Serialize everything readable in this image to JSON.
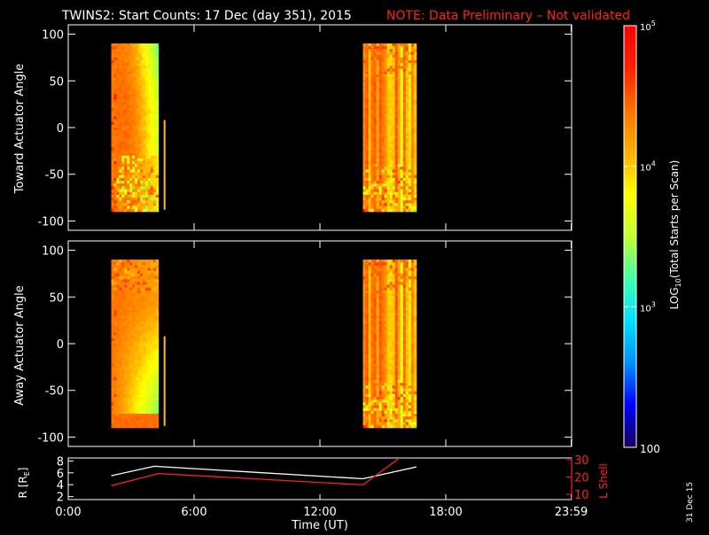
{
  "header": {
    "title": "TWINS2: Start Counts: 17 Dec (day 351), 2015",
    "note": "NOTE: Data Preliminary – Not validated",
    "note_color": "#ff2020"
  },
  "footer": {
    "date_stamp": "31 Dec 15"
  },
  "colors": {
    "background": "#000000",
    "axes": "#ffffff",
    "lshell": "#ff2020"
  },
  "chart_data": [
    {
      "type": "heatmap",
      "title": "",
      "ylabel": "Toward Actuator Angle",
      "xlim": [
        0,
        24
      ],
      "ylim": [
        -110,
        110
      ],
      "yticks": [
        {
          "value": 100,
          "label": "100"
        },
        {
          "value": 50,
          "label": "50"
        },
        {
          "value": 0,
          "label": "0"
        },
        {
          "value": -50,
          "label": "-50"
        },
        {
          "value": -100,
          "label": "-100"
        }
      ],
      "angle_range": [
        -90,
        90
      ],
      "intervals": [
        {
          "start": 2.05,
          "end": 4.3,
          "style": "early_toward"
        },
        {
          "start": 14.05,
          "end": 16.6,
          "style": "late"
        }
      ],
      "spike": {
        "time": 4.55,
        "min": -88,
        "max": 8
      }
    },
    {
      "type": "heatmap",
      "title": "",
      "ylabel": "Away Actuator Angle",
      "xlim": [
        0,
        24
      ],
      "ylim": [
        -110,
        110
      ],
      "yticks": [
        {
          "value": 100,
          "label": "100"
        },
        {
          "value": 50,
          "label": "50"
        },
        {
          "value": 0,
          "label": "0"
        },
        {
          "value": -50,
          "label": "-50"
        },
        {
          "value": -100,
          "label": "-100"
        }
      ],
      "angle_range": [
        -90,
        90
      ],
      "intervals": [
        {
          "start": 2.05,
          "end": 4.3,
          "style": "early_away"
        },
        {
          "start": 14.05,
          "end": 16.6,
          "style": "late"
        }
      ],
      "spike": {
        "time": 4.55,
        "min": -88,
        "max": 8
      }
    },
    {
      "type": "line",
      "title": "",
      "ylabel": "R [R",
      "ylabel_sub": "E",
      "ylabel_end": "]",
      "y2label": "L Shell",
      "xlabel": "Time (UT)",
      "xlim": [
        0,
        24
      ],
      "ylim": [
        1.5,
        8.5
      ],
      "y2lim": [
        7,
        31
      ],
      "xticks": [
        {
          "value": 0,
          "label": "0:00"
        },
        {
          "value": 6,
          "label": "6:00"
        },
        {
          "value": 12,
          "label": "12:00"
        },
        {
          "value": 18,
          "label": "18:00"
        },
        {
          "value": 23.98,
          "label": "23:59"
        }
      ],
      "yticks": [
        {
          "value": 8,
          "label": "8"
        },
        {
          "value": 6,
          "label": "6"
        },
        {
          "value": 4,
          "label": "4"
        },
        {
          "value": 2,
          "label": "2"
        }
      ],
      "y2ticks": [
        {
          "value": 30,
          "label": "30"
        },
        {
          "value": 20,
          "label": "20"
        },
        {
          "value": 10,
          "label": "10"
        }
      ],
      "series": [
        {
          "axis": "left",
          "color": "#ffffff",
          "x": [
            2.05,
            4.1,
            14.05,
            16.6
          ],
          "y": [
            5.5,
            7.1,
            5.0,
            7.0
          ]
        },
        {
          "axis": "right",
          "color": "#ff2020",
          "x": [
            2.05,
            4.3,
            14.05,
            15.8
          ],
          "y": [
            15.0,
            22.0,
            15.5,
            31.0
          ]
        }
      ]
    }
  ],
  "colorbar": {
    "label_pre": "LOG",
    "label_sub": "10",
    "label_post": "(Total Starts per Scan)",
    "scale": "log",
    "range": [
      100,
      100000
    ],
    "ticks": [
      {
        "value": 100000,
        "base": "10",
        "exp": "5"
      },
      {
        "value": 10000,
        "base": "10",
        "exp": "4"
      },
      {
        "value": 1000,
        "base": "10",
        "exp": "3"
      },
      {
        "value": 100,
        "base": "100",
        "exp": ""
      }
    ],
    "colors": [
      "#1a005a",
      "#0000ff",
      "#0090ff",
      "#00e0ff",
      "#40ffb0",
      "#c0ff30",
      "#ffff00",
      "#ffb000",
      "#ff7000",
      "#ff2000",
      "#ff0000"
    ]
  }
}
